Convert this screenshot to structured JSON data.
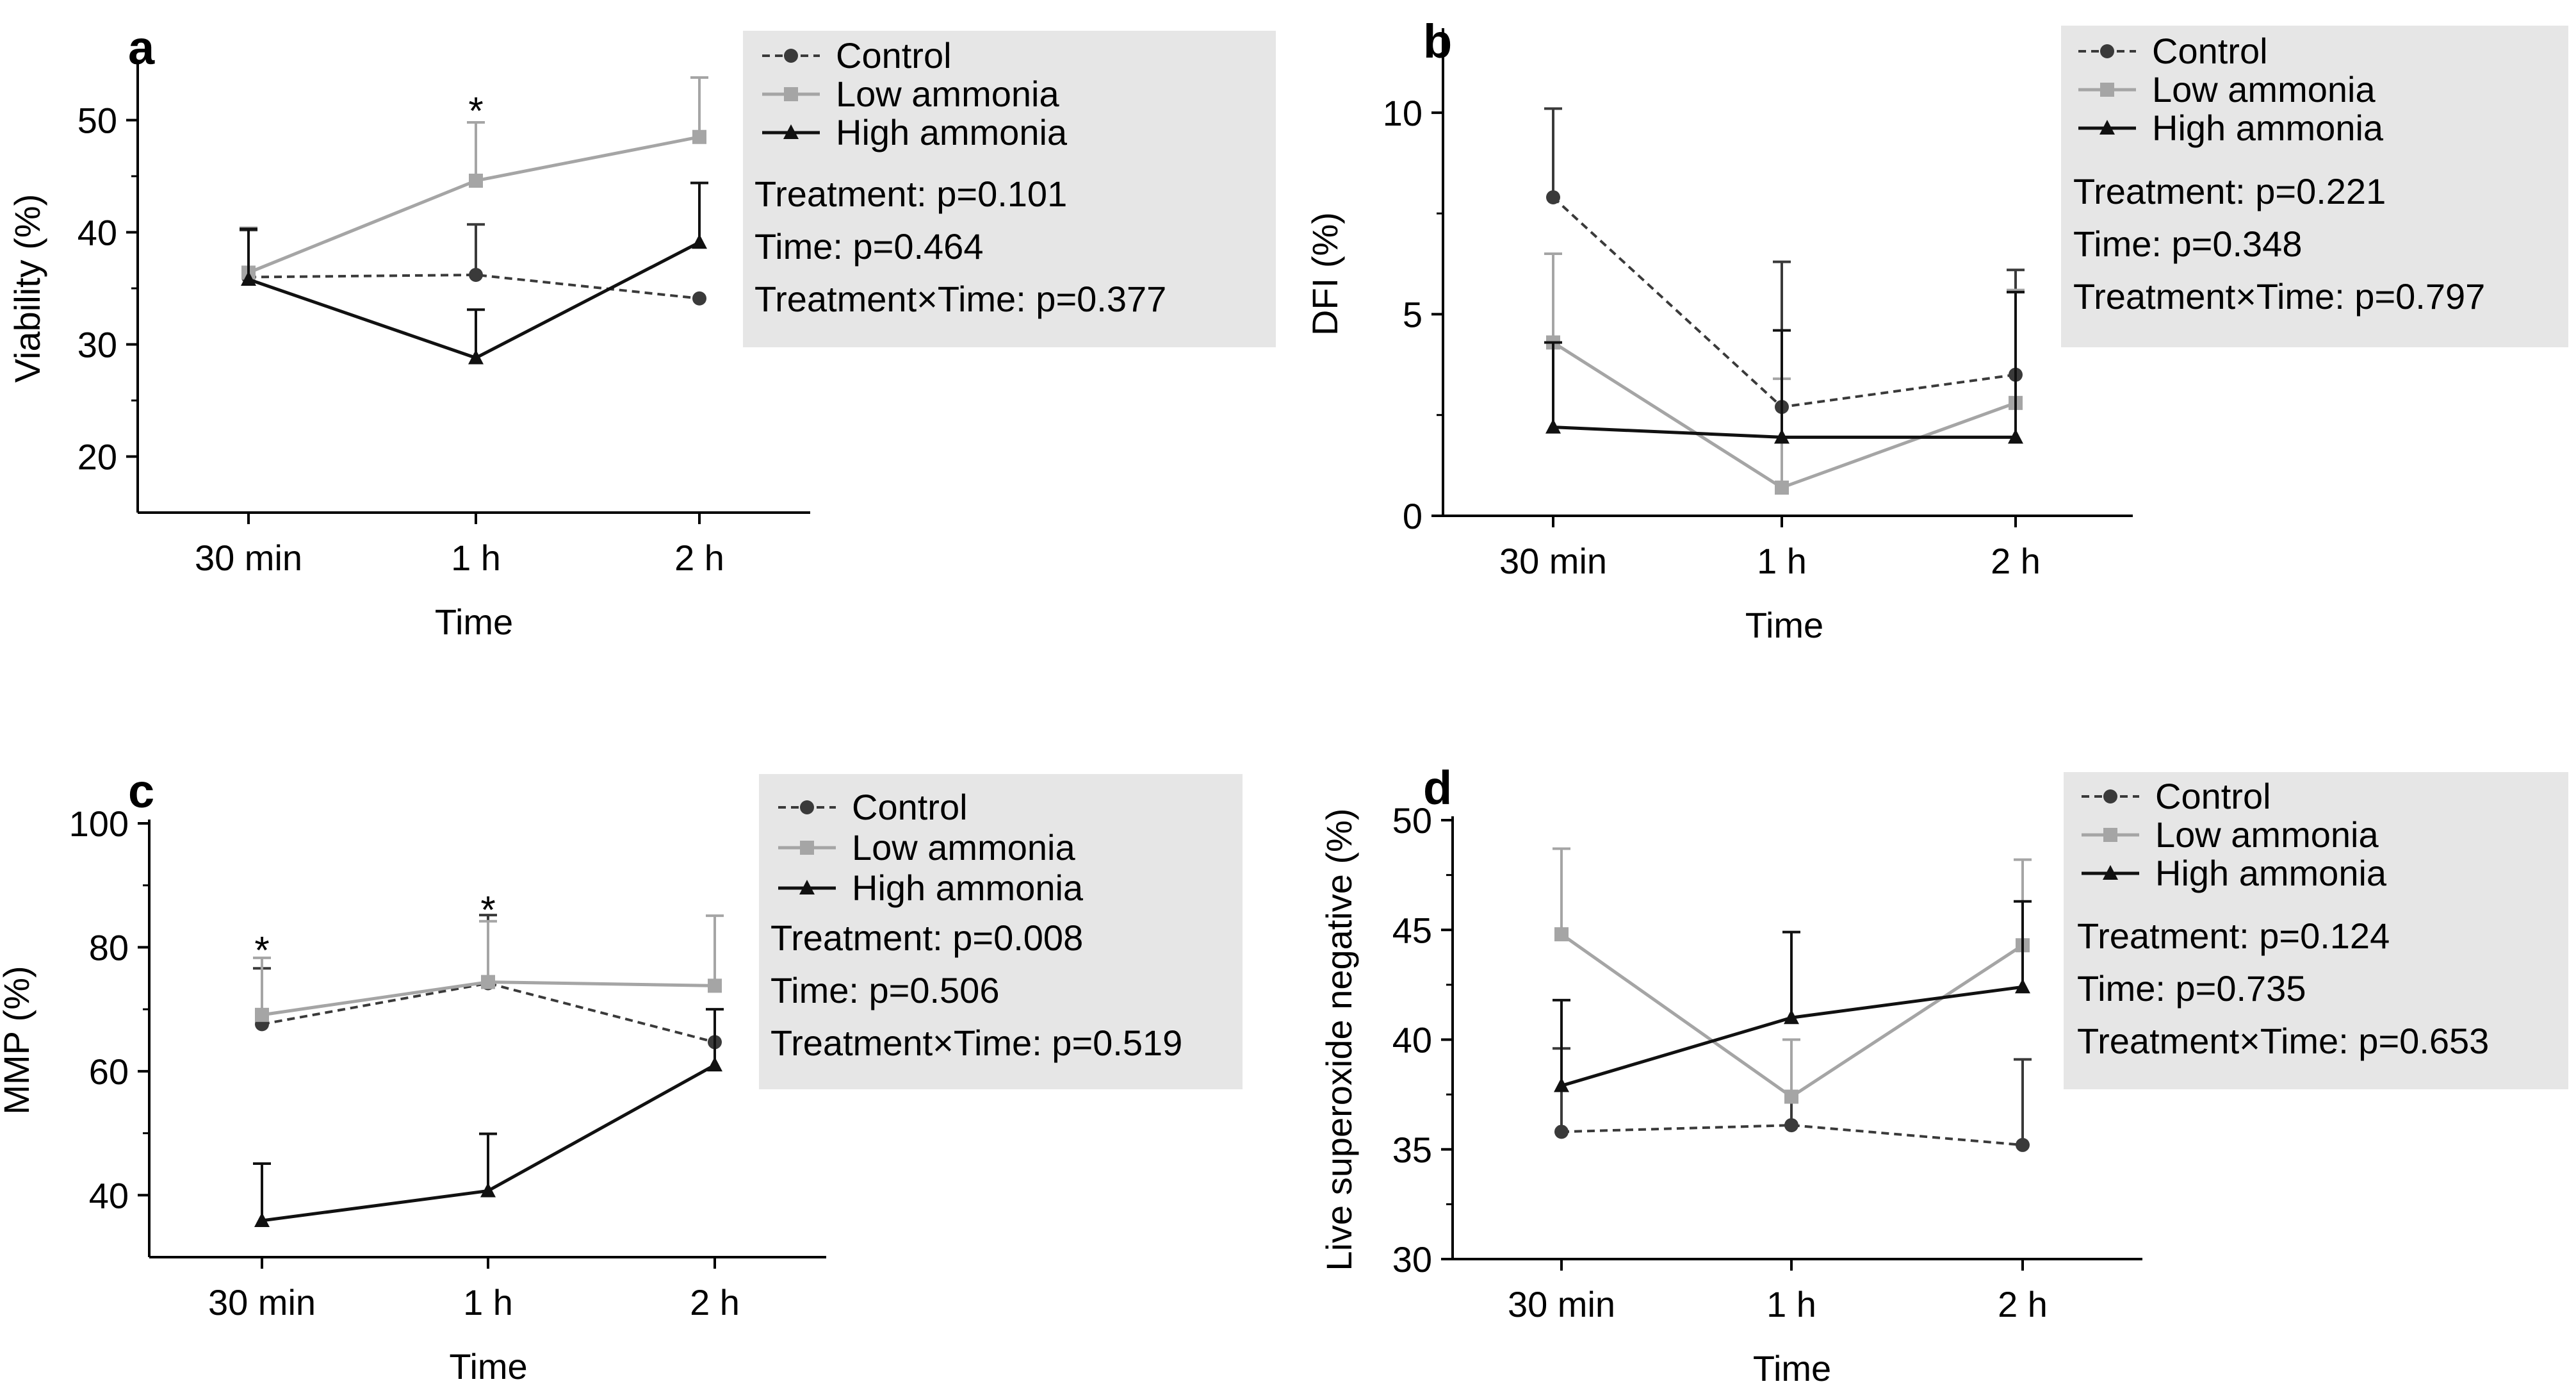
{
  "chart_data": [
    {
      "panel": "a",
      "type": "line",
      "categories": [
        "30 min",
        "1 h",
        "2 h"
      ],
      "xlabel": "Time",
      "ylabel": "Viability (%)",
      "ylim": [
        15,
        55
      ],
      "yticks": [
        20,
        30,
        40,
        50
      ],
      "series": [
        {
          "name": "Control",
          "style": "control",
          "values": [
            36.0,
            36.2,
            34.1
          ],
          "err": [
            4.2,
            4.5,
            0
          ]
        },
        {
          "name": "Low ammonia",
          "style": "low",
          "values": [
            36.4,
            44.6,
            48.5
          ],
          "err": [
            4.0,
            5.2,
            5.3
          ]
        },
        {
          "name": "High ammonia",
          "style": "high",
          "values": [
            35.8,
            28.8,
            39.1
          ],
          "err": [
            4.5,
            4.3,
            5.3
          ]
        }
      ],
      "markers": [
        {
          "cat": 1,
          "value": 50.8,
          "text": "*"
        }
      ],
      "stats": [
        "Treatment: p=0.101",
        "Time: p=0.464",
        "Treatment×Time: p=0.377"
      ]
    },
    {
      "panel": "b",
      "type": "line",
      "categories": [
        "30 min",
        "1 h",
        "2 h"
      ],
      "xlabel": "Time",
      "ylabel": "DFI (%)",
      "ylim": [
        0,
        12
      ],
      "yticks": [
        0,
        5,
        10
      ],
      "zero_line": true,
      "series": [
        {
          "name": "Control",
          "style": "control",
          "values": [
            7.9,
            2.7,
            3.5
          ],
          "err": [
            2.2,
            3.6,
            2.6
          ]
        },
        {
          "name": "Low ammonia",
          "style": "low",
          "values": [
            4.3,
            0.7,
            2.8
          ],
          "err": [
            2.2,
            2.7,
            2.8
          ]
        },
        {
          "name": "High ammonia",
          "style": "high",
          "values": [
            2.2,
            1.95,
            1.95
          ],
          "err": [
            2.1,
            2.65,
            3.6
          ]
        }
      ],
      "markers": [],
      "stats": [
        "Treatment: p=0.221",
        "Time: p=0.348",
        "Treatment×Time: p=0.797"
      ]
    },
    {
      "panel": "c",
      "type": "line",
      "categories": [
        "30 min",
        "1 h",
        "2 h"
      ],
      "xlabel": "Time",
      "ylabel": "MMP (%)",
      "ylim": [
        30,
        100
      ],
      "yticks": [
        40,
        60,
        80,
        100
      ],
      "series": [
        {
          "name": "Control",
          "style": "control",
          "values": [
            67.6,
            74.2,
            64.7
          ],
          "err": [
            9.0,
            11.0,
            0
          ]
        },
        {
          "name": "Low ammonia",
          "style": "low",
          "values": [
            69.1,
            74.4,
            73.8
          ],
          "err": [
            9.2,
            9.8,
            11.3
          ]
        },
        {
          "name": " High ammonia",
          "style": "high",
          "values": [
            35.9,
            40.7,
            61.0
          ],
          "err": [
            9.2,
            9.2,
            9.0
          ]
        }
      ],
      "markers": [
        {
          "cat": 0,
          "value": 79.5,
          "text": "*"
        },
        {
          "cat": 1,
          "value": 86.0,
          "text": "*"
        }
      ],
      "stats": [
        "Treatment: p=0.008",
        "Time: p=0.506",
        "Treatment×Time: p=0.519"
      ]
    },
    {
      "panel": "d",
      "type": "line",
      "categories": [
        "30 min",
        "1 h",
        "2 h"
      ],
      "xlabel": "Time",
      "ylabel": "Live superoxide negative (%)",
      "ylim": [
        30,
        50
      ],
      "yticks": [
        30,
        35,
        40,
        45,
        50
      ],
      "series": [
        {
          "name": "Control",
          "style": "control",
          "values": [
            35.8,
            36.1,
            35.2
          ],
          "err": [
            3.8,
            3.9,
            3.9
          ]
        },
        {
          "name": "Low ammonia",
          "style": "low",
          "values": [
            44.8,
            37.4,
            44.3
          ],
          "err": [
            3.9,
            2.6,
            3.9
          ]
        },
        {
          "name": "High ammonia",
          "style": "high",
          "values": [
            37.9,
            41.0,
            42.4
          ],
          "err": [
            3.9,
            3.9,
            3.9
          ]
        }
      ],
      "markers": [],
      "stats": [
        "Treatment: p=0.124",
        "Time: p=0.735",
        "Treatment×Time: p=0.653"
      ]
    }
  ]
}
